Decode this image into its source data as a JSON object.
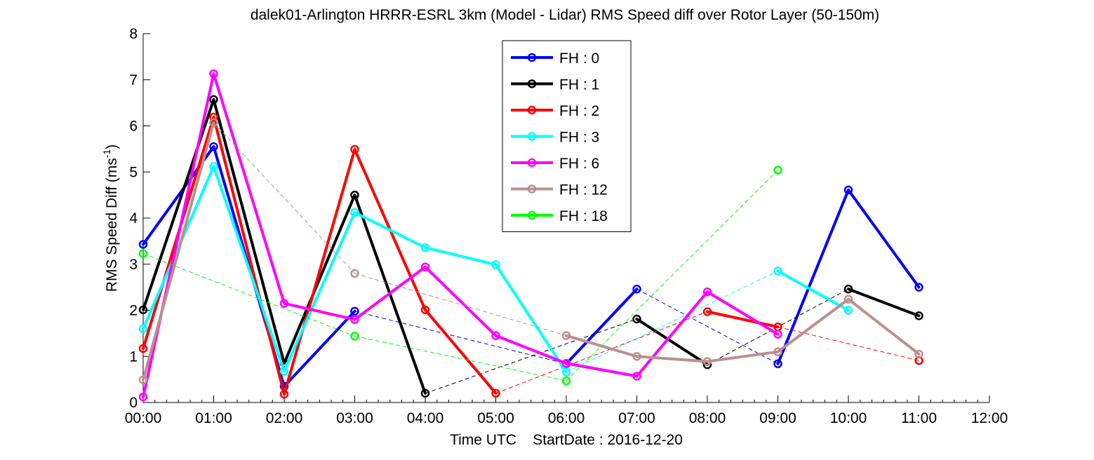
{
  "chart_data": {
    "type": "line",
    "title": "dalek01-Arlington HRRR-ESRL 3km (Model - Lidar) RMS Speed diff over Rotor Layer (50-150m)",
    "xlabel": "Time UTC    StartDate : 2016-12-20",
    "ylabel_main": "RMS Speed Diff (ms",
    "ylabel_sup": "-1",
    "ylabel_close": ")",
    "xlim": [
      0,
      12
    ],
    "ylim": [
      0,
      8
    ],
    "xtick_labels": [
      "00:00",
      "01:00",
      "02:00",
      "03:00",
      "04:00",
      "05:00",
      "06:00",
      "07:00",
      "08:00",
      "09:00",
      "10:00",
      "11:00",
      "12:00"
    ],
    "ytick_labels": [
      "0",
      "1",
      "2",
      "3",
      "4",
      "5",
      "6",
      "7",
      "8"
    ],
    "grid": false,
    "legend_position": "top-center",
    "series": [
      {
        "name": "FH : 0",
        "color": "#0000ff",
        "x": [
          0,
          1,
          2,
          3,
          6,
          7,
          9,
          10,
          11
        ],
        "y": [
          3.43,
          5.55,
          0.35,
          1.98,
          0.84,
          2.46,
          0.84,
          4.61,
          2.5
        ]
      },
      {
        "name": "FH : 1",
        "color": "#000000",
        "x": [
          0,
          1,
          2,
          3,
          4,
          7,
          8,
          10,
          11
        ],
        "y": [
          2.01,
          6.57,
          0.85,
          4.5,
          0.2,
          1.81,
          0.82,
          2.46,
          1.88
        ]
      },
      {
        "name": "FH : 2",
        "color": "#ff0000",
        "x": [
          0,
          1,
          2,
          3,
          4,
          5,
          8,
          9,
          11
        ],
        "y": [
          1.17,
          6.19,
          0.18,
          5.49,
          2.01,
          0.2,
          1.97,
          1.64,
          0.91
        ]
      },
      {
        "name": "FH : 3",
        "color": "#00ffff",
        "x": [
          0,
          1,
          2,
          3,
          4,
          5,
          6,
          9,
          10
        ],
        "y": [
          1.6,
          5.12,
          0.68,
          4.12,
          3.36,
          2.99,
          0.66,
          2.85,
          2.0
        ]
      },
      {
        "name": "FH : 6",
        "color": "#ff00ff",
        "x": [
          0,
          1,
          2,
          3,
          4,
          5,
          6,
          7,
          8,
          9
        ],
        "y": [
          0.12,
          7.13,
          2.15,
          1.8,
          2.94,
          1.45,
          0.85,
          0.57,
          2.4,
          1.48
        ]
      },
      {
        "name": "FH : 12",
        "color": "#bc8f8f",
        "x": [
          0,
          1,
          3,
          6,
          7,
          8,
          9,
          10,
          11
        ],
        "y": [
          0.49,
          6.07,
          2.8,
          1.45,
          1.0,
          0.89,
          1.1,
          2.24,
          1.05
        ]
      },
      {
        "name": "FH : 18",
        "color": "#00ff00",
        "x": [
          0,
          3,
          6,
          9
        ],
        "y": [
          3.23,
          1.44,
          0.47,
          5.04
        ]
      }
    ]
  }
}
